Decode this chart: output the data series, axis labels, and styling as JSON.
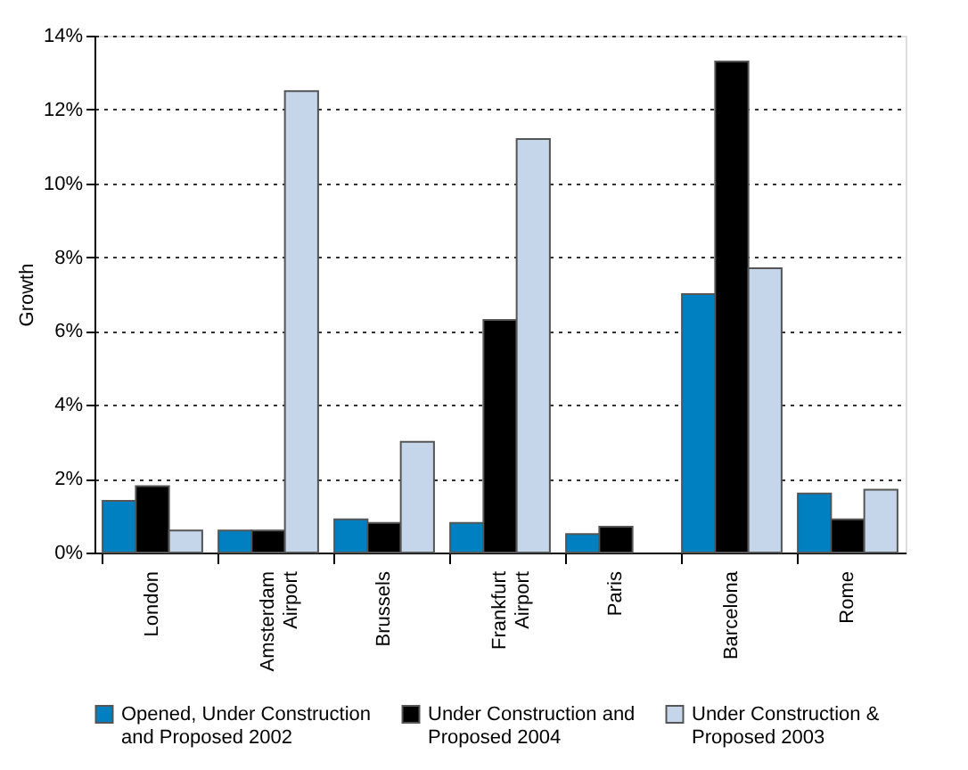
{
  "chart_data": {
    "type": "bar",
    "ylabel": "Growth",
    "categories": [
      "London",
      "Amsterdam Airport",
      "Brussels",
      "Frankfurt Airport",
      "Paris",
      "Barcelona",
      "Rome"
    ],
    "series": [
      {
        "name": "Opened, Under Construction and Proposed 2002",
        "color": "#0080c0",
        "values": [
          1.4,
          0.6,
          0.9,
          0.8,
          0.5,
          7.0,
          1.6
        ]
      },
      {
        "name": "Under Construction and Proposed 2004",
        "color": "#000000",
        "values": [
          1.8,
          0.6,
          0.8,
          6.3,
          0.7,
          13.3,
          0.9
        ]
      },
      {
        "name": "Under Construction & Proposed 2003",
        "color": "#c5d5ea",
        "values": [
          0.6,
          12.5,
          3.0,
          11.2,
          null,
          7.7,
          1.7
        ]
      }
    ],
    "ylim": [
      0,
      14
    ],
    "yticks": [
      {
        "value": 0,
        "label": "0%"
      },
      {
        "value": 2,
        "label": "2%"
      },
      {
        "value": 4,
        "label": "4%"
      },
      {
        "value": 6,
        "label": "6%"
      },
      {
        "value": 8,
        "label": "8%"
      },
      {
        "value": 10,
        "label": "10%"
      },
      {
        "value": 12,
        "label": "12%"
      },
      {
        "value": 14,
        "label": "14%"
      }
    ],
    "grid": "y",
    "legend": "bottom"
  }
}
